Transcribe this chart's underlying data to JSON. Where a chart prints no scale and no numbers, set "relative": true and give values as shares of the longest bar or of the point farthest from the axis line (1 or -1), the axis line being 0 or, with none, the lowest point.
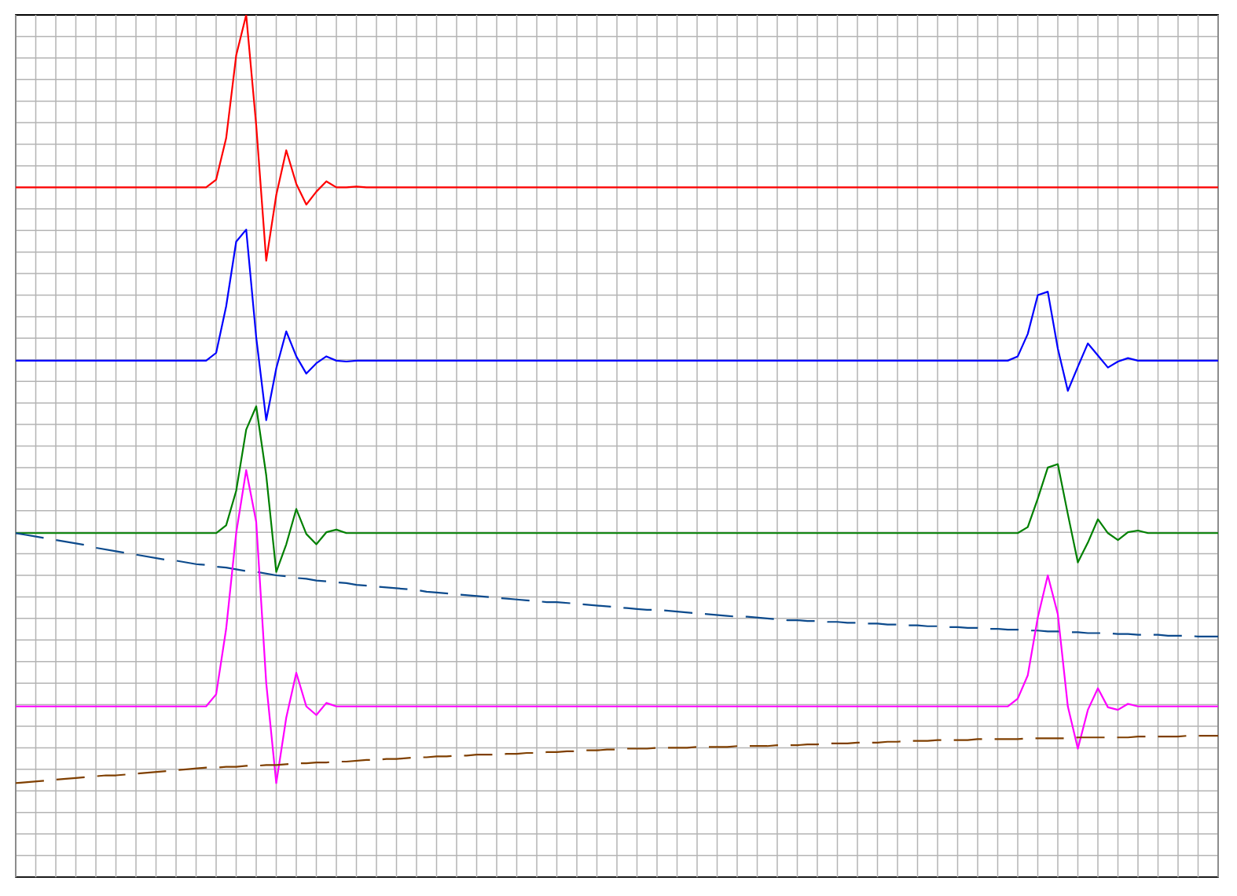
{
  "chart_data": {
    "type": "line",
    "relative": true,
    "grid": true,
    "categories": [
      null,
      null,
      null,
      null,
      null,
      null,
      null,
      null,
      null,
      null,
      null,
      null,
      null,
      null,
      null,
      null,
      null,
      null,
      null,
      null,
      null,
      null,
      null,
      null,
      null,
      null,
      null,
      null,
      null,
      null,
      null,
      null,
      null,
      null,
      null,
      null,
      null,
      null,
      null,
      null,
      null,
      null,
      null,
      null,
      null,
      null,
      null,
      null,
      null,
      null,
      null,
      null,
      null,
      null,
      null,
      null,
      null,
      null,
      null,
      null,
      null,
      null,
      null,
      null,
      null,
      null,
      null,
      null,
      null,
      null,
      null,
      null,
      null,
      null,
      null,
      null,
      null,
      null,
      null,
      null,
      null,
      null,
      null,
      null,
      null,
      null,
      null,
      null,
      null,
      null,
      null,
      null,
      null,
      null,
      null,
      null,
      null,
      null,
      null,
      null,
      null,
      null,
      null,
      null,
      null,
      null,
      null,
      null,
      null,
      null,
      null,
      null,
      null,
      null,
      null,
      null,
      null,
      null,
      null,
      null,
      null
    ],
    "series": [
      {
        "color": "#ff0000",
        "values": [
          0.8,
          0.8,
          0.8,
          0.8,
          0.8,
          0.8,
          0.8,
          0.8,
          0.8,
          0.8,
          0.8,
          0.8,
          0.8,
          0.8,
          0.8,
          0.8,
          0.8,
          0.8,
          0.8,
          0.8,
          0.809,
          0.857,
          0.953,
          1.0,
          0.872,
          0.715,
          0.791,
          0.843,
          0.804,
          0.78,
          0.795,
          0.807,
          0.8,
          0.8,
          0.801,
          0.8,
          0.8,
          0.8,
          0.8,
          0.8,
          0.8,
          0.8,
          0.8,
          0.8,
          0.8,
          0.8,
          0.8,
          0.8,
          0.8,
          0.8,
          0.8,
          0.8,
          0.8,
          0.8,
          0.8,
          0.8,
          0.8,
          0.8,
          0.8,
          0.8,
          0.8,
          0.8,
          0.8,
          0.8,
          0.8,
          0.8,
          0.8,
          0.8,
          0.8,
          0.8,
          0.8,
          0.8,
          0.8,
          0.8,
          0.8,
          0.8,
          0.8,
          0.8,
          0.8,
          0.8,
          0.8,
          0.8,
          0.8,
          0.8,
          0.8,
          0.8,
          0.8,
          0.8,
          0.8,
          0.8,
          0.8,
          0.8,
          0.8,
          0.8,
          0.8,
          0.8,
          0.8,
          0.8,
          0.8,
          0.8,
          0.8,
          0.8,
          0.8,
          0.8,
          0.8,
          0.8,
          0.8,
          0.8,
          0.8,
          0.8,
          0.8,
          0.8,
          0.8,
          0.8,
          0.8,
          0.8,
          0.8,
          0.8,
          0.8,
          0.8,
          0.8
        ]
      },
      {
        "color": "#0000ff",
        "values": [
          0.599,
          0.599,
          0.599,
          0.599,
          0.599,
          0.599,
          0.599,
          0.599,
          0.599,
          0.599,
          0.599,
          0.599,
          0.599,
          0.599,
          0.599,
          0.599,
          0.599,
          0.599,
          0.599,
          0.599,
          0.608,
          0.662,
          0.737,
          0.751,
          0.626,
          0.53,
          0.59,
          0.633,
          0.604,
          0.584,
          0.596,
          0.604,
          0.599,
          0.598,
          0.599,
          0.599,
          0.599,
          0.599,
          0.599,
          0.599,
          0.599,
          0.599,
          0.599,
          0.599,
          0.599,
          0.599,
          0.599,
          0.599,
          0.599,
          0.599,
          0.599,
          0.599,
          0.599,
          0.599,
          0.599,
          0.599,
          0.599,
          0.599,
          0.599,
          0.599,
          0.599,
          0.599,
          0.599,
          0.599,
          0.599,
          0.599,
          0.599,
          0.599,
          0.599,
          0.599,
          0.599,
          0.599,
          0.599,
          0.599,
          0.599,
          0.599,
          0.599,
          0.599,
          0.599,
          0.599,
          0.599,
          0.599,
          0.599,
          0.599,
          0.599,
          0.599,
          0.599,
          0.599,
          0.599,
          0.599,
          0.599,
          0.599,
          0.599,
          0.599,
          0.599,
          0.599,
          0.599,
          0.599,
          0.599,
          0.599,
          0.604,
          0.63,
          0.675,
          0.679,
          0.613,
          0.564,
          0.592,
          0.619,
          0.605,
          0.591,
          0.598,
          0.602,
          0.599,
          0.599,
          0.599,
          0.599,
          0.599,
          0.599,
          0.599,
          0.599,
          0.599
        ]
      },
      {
        "color": "#008000",
        "values": [
          0.399,
          0.399,
          0.399,
          0.399,
          0.399,
          0.399,
          0.399,
          0.399,
          0.399,
          0.399,
          0.399,
          0.399,
          0.399,
          0.399,
          0.399,
          0.399,
          0.399,
          0.399,
          0.399,
          0.399,
          0.399,
          0.408,
          0.448,
          0.519,
          0.546,
          0.466,
          0.354,
          0.386,
          0.427,
          0.398,
          0.386,
          0.4,
          0.403,
          0.399,
          0.399,
          0.399,
          0.399,
          0.399,
          0.399,
          0.399,
          0.399,
          0.399,
          0.399,
          0.399,
          0.399,
          0.399,
          0.399,
          0.399,
          0.399,
          0.399,
          0.399,
          0.399,
          0.399,
          0.399,
          0.399,
          0.399,
          0.399,
          0.399,
          0.399,
          0.399,
          0.399,
          0.399,
          0.399,
          0.399,
          0.399,
          0.399,
          0.399,
          0.399,
          0.399,
          0.399,
          0.399,
          0.399,
          0.399,
          0.399,
          0.399,
          0.399,
          0.399,
          0.399,
          0.399,
          0.399,
          0.399,
          0.399,
          0.399,
          0.399,
          0.399,
          0.399,
          0.399,
          0.399,
          0.399,
          0.399,
          0.399,
          0.399,
          0.399,
          0.399,
          0.399,
          0.399,
          0.399,
          0.399,
          0.399,
          0.399,
          0.399,
          0.406,
          0.439,
          0.475,
          0.479,
          0.421,
          0.365,
          0.388,
          0.415,
          0.399,
          0.391,
          0.4,
          0.402,
          0.399,
          0.399,
          0.399,
          0.399,
          0.399,
          0.399,
          0.399,
          0.399
        ]
      },
      {
        "color": "#0c4a8c",
        "line_style": "dashed",
        "values": [
          0.399,
          0.397,
          0.395,
          0.393,
          0.391,
          0.389,
          0.387,
          0.385,
          0.382,
          0.38,
          0.378,
          0.376,
          0.374,
          0.372,
          0.37,
          0.368,
          0.367,
          0.365,
          0.363,
          0.362,
          0.36,
          0.359,
          0.357,
          0.355,
          0.354,
          0.352,
          0.35,
          0.349,
          0.347,
          0.346,
          0.344,
          0.343,
          0.342,
          0.341,
          0.339,
          0.338,
          0.337,
          0.336,
          0.335,
          0.334,
          0.333,
          0.331,
          0.33,
          0.329,
          0.328,
          0.327,
          0.326,
          0.325,
          0.324,
          0.323,
          0.322,
          0.321,
          0.32,
          0.319,
          0.319,
          0.318,
          0.317,
          0.316,
          0.315,
          0.314,
          0.313,
          0.312,
          0.311,
          0.31,
          0.31,
          0.309,
          0.308,
          0.307,
          0.306,
          0.305,
          0.304,
          0.303,
          0.302,
          0.302,
          0.301,
          0.3,
          0.299,
          0.298,
          0.298,
          0.297,
          0.297,
          0.296,
          0.296,
          0.295,
          0.295,
          0.294,
          0.294,
          0.293,
          0.293,
          0.292,
          0.292,
          0.291,
          0.291,
          0.29,
          0.29,
          0.289,
          0.289,
          0.288,
          0.288,
          0.287,
          0.287,
          0.286,
          0.286,
          0.285,
          0.285,
          0.284,
          0.284,
          0.283,
          0.283,
          0.283,
          0.282,
          0.282,
          0.281,
          0.281,
          0.281,
          0.28,
          0.28,
          0.28,
          0.279,
          0.279,
          0.279
        ]
      },
      {
        "color": "#ff00ff",
        "values": [
          0.198,
          0.198,
          0.198,
          0.198,
          0.198,
          0.198,
          0.198,
          0.198,
          0.198,
          0.198,
          0.198,
          0.198,
          0.198,
          0.198,
          0.198,
          0.198,
          0.198,
          0.198,
          0.198,
          0.198,
          0.212,
          0.288,
          0.399,
          0.472,
          0.412,
          0.225,
          0.109,
          0.185,
          0.237,
          0.198,
          0.188,
          0.202,
          0.198,
          0.198,
          0.198,
          0.198,
          0.198,
          0.198,
          0.198,
          0.198,
          0.198,
          0.198,
          0.198,
          0.198,
          0.198,
          0.198,
          0.198,
          0.198,
          0.198,
          0.198,
          0.198,
          0.198,
          0.198,
          0.198,
          0.198,
          0.198,
          0.198,
          0.198,
          0.198,
          0.198,
          0.198,
          0.198,
          0.198,
          0.198,
          0.198,
          0.198,
          0.198,
          0.198,
          0.198,
          0.198,
          0.198,
          0.198,
          0.198,
          0.198,
          0.198,
          0.198,
          0.198,
          0.198,
          0.198,
          0.198,
          0.198,
          0.198,
          0.198,
          0.198,
          0.198,
          0.198,
          0.198,
          0.198,
          0.198,
          0.198,
          0.198,
          0.198,
          0.198,
          0.198,
          0.198,
          0.198,
          0.198,
          0.198,
          0.198,
          0.198,
          0.207,
          0.234,
          0.301,
          0.35,
          0.305,
          0.198,
          0.149,
          0.194,
          0.219,
          0.197,
          0.194,
          0.201,
          0.198,
          0.198,
          0.198,
          0.198,
          0.198,
          0.198,
          0.198,
          0.198,
          0.198
        ]
      },
      {
        "color": "#7f3f00",
        "line_style": "dashed",
        "values": [
          0.109,
          0.11,
          0.111,
          0.112,
          0.113,
          0.114,
          0.115,
          0.116,
          0.117,
          0.118,
          0.118,
          0.119,
          0.12,
          0.121,
          0.122,
          0.123,
          0.124,
          0.125,
          0.126,
          0.127,
          0.127,
          0.128,
          0.128,
          0.129,
          0.129,
          0.13,
          0.13,
          0.131,
          0.132,
          0.132,
          0.133,
          0.133,
          0.134,
          0.134,
          0.135,
          0.136,
          0.136,
          0.137,
          0.137,
          0.138,
          0.139,
          0.139,
          0.14,
          0.14,
          0.141,
          0.141,
          0.142,
          0.142,
          0.142,
          0.143,
          0.143,
          0.144,
          0.144,
          0.145,
          0.145,
          0.146,
          0.146,
          0.147,
          0.147,
          0.148,
          0.148,
          0.149,
          0.149,
          0.149,
          0.15,
          0.15,
          0.15,
          0.15,
          0.151,
          0.151,
          0.151,
          0.151,
          0.152,
          0.152,
          0.152,
          0.152,
          0.153,
          0.153,
          0.153,
          0.154,
          0.154,
          0.155,
          0.155,
          0.155,
          0.156,
          0.156,
          0.156,
          0.157,
          0.157,
          0.158,
          0.158,
          0.158,
          0.159,
          0.159,
          0.159,
          0.159,
          0.16,
          0.16,
          0.16,
          0.16,
          0.16,
          0.161,
          0.161,
          0.161,
          0.161,
          0.161,
          0.162,
          0.162,
          0.162,
          0.162,
          0.162,
          0.162,
          0.163,
          0.163,
          0.163,
          0.163,
          0.163,
          0.164,
          0.164,
          0.164,
          0.164
        ]
      }
    ]
  }
}
